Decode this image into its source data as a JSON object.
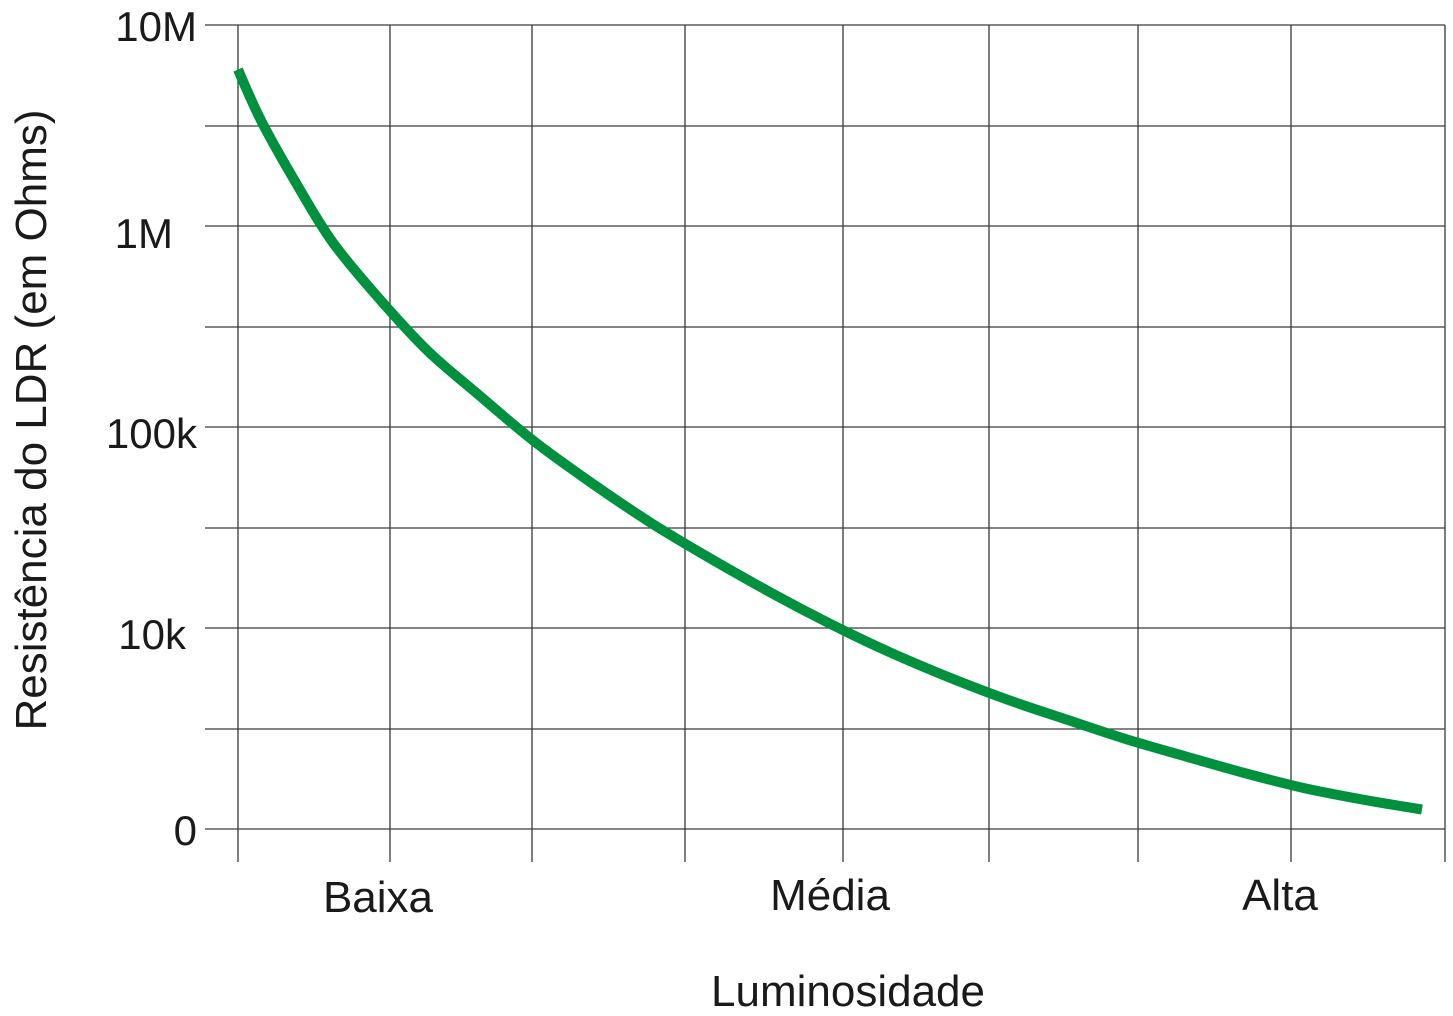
{
  "chart_data": {
    "type": "line",
    "title": "",
    "xlabel": "Luminosidade",
    "ylabel": "Resistência do LDR (em Ohms)",
    "x_tick_labels": [
      "Baixa",
      "Média",
      "Alta"
    ],
    "y_tick_labels": [
      "10M",
      "1M",
      "100k",
      "10k",
      "0"
    ],
    "y_scale": "log",
    "grid": true,
    "legend": "none",
    "series": [
      {
        "color": "#00913f",
        "points": [
          {
            "x": 0.0,
            "y": 6000000
          },
          {
            "x": 0.02,
            "y": 3300000
          },
          {
            "x": 0.05,
            "y": 1600000
          },
          {
            "x": 0.08,
            "y": 830000
          },
          {
            "x": 0.12,
            "y": 430000
          },
          {
            "x": 0.16,
            "y": 240000
          },
          {
            "x": 0.2,
            "y": 150000
          },
          {
            "x": 0.25,
            "y": 85000
          },
          {
            "x": 0.3,
            "y": 52000
          },
          {
            "x": 0.35,
            "y": 33000
          },
          {
            "x": 0.4,
            "y": 22000
          },
          {
            "x": 0.45,
            "y": 15000
          },
          {
            "x": 0.5,
            "y": 10500
          },
          {
            "x": 0.55,
            "y": 7600
          },
          {
            "x": 0.6,
            "y": 5700
          },
          {
            "x": 0.65,
            "y": 4400
          },
          {
            "x": 0.7,
            "y": 3500
          },
          {
            "x": 0.75,
            "y": 2800
          },
          {
            "x": 0.8,
            "y": 2300
          },
          {
            "x": 0.85,
            "y": 1900
          },
          {
            "x": 0.9,
            "y": 1600
          },
          {
            "x": 0.95,
            "y": 1400
          },
          {
            "x": 1.0,
            "y": 1250
          }
        ]
      }
    ]
  }
}
